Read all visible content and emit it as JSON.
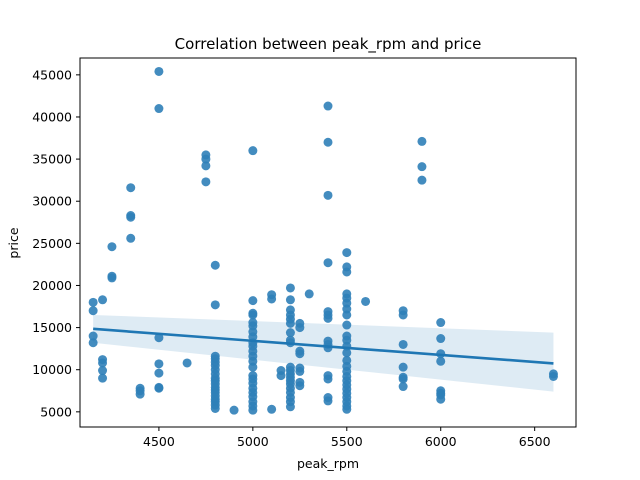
{
  "chart_data": {
    "type": "scatter",
    "title": "Correlation between peak_rpm and price",
    "xlabel": "peak_rpm",
    "ylabel": "price",
    "xlim": [
      4080,
      6720
    ],
    "ylim": [
      3200,
      47000
    ],
    "xticks": [
      4500,
      5000,
      5500,
      6000,
      6500
    ],
    "yticks": [
      5000,
      10000,
      15000,
      20000,
      25000,
      30000,
      35000,
      40000,
      45000
    ],
    "grid": false,
    "legend": "none",
    "color": "#1f77b4",
    "point_color": "#2f7fb8",
    "points": [
      [
        4150,
        18000
      ],
      [
        4150,
        17000
      ],
      [
        4150,
        14000
      ],
      [
        4150,
        13200
      ],
      [
        4200,
        18300
      ],
      [
        4200,
        11200
      ],
      [
        4200,
        10800
      ],
      [
        4200,
        9900
      ],
      [
        4200,
        9000
      ],
      [
        4250,
        24600
      ],
      [
        4250,
        21100
      ],
      [
        4250,
        20900
      ],
      [
        4350,
        31600
      ],
      [
        4350,
        28300
      ],
      [
        4350,
        28100
      ],
      [
        4350,
        25600
      ],
      [
        4400,
        7800
      ],
      [
        4400,
        7100
      ],
      [
        4400,
        7500
      ],
      [
        4500,
        45400
      ],
      [
        4500,
        41000
      ],
      [
        4500,
        13800
      ],
      [
        4500,
        10700
      ],
      [
        4500,
        9600
      ],
      [
        4500,
        7900
      ],
      [
        4500,
        7800
      ],
      [
        4650,
        10800
      ],
      [
        4750,
        35500
      ],
      [
        4750,
        35000
      ],
      [
        4750,
        34200
      ],
      [
        4750,
        32300
      ],
      [
        4800,
        22400
      ],
      [
        4800,
        17700
      ],
      [
        4800,
        11600
      ],
      [
        4800,
        11300
      ],
      [
        4800,
        10900
      ],
      [
        4800,
        10500
      ],
      [
        4800,
        10000
      ],
      [
        4800,
        9500
      ],
      [
        4800,
        9000
      ],
      [
        4800,
        8700
      ],
      [
        4800,
        8300
      ],
      [
        4800,
        7900
      ],
      [
        4800,
        7600
      ],
      [
        4800,
        7300
      ],
      [
        4800,
        6900
      ],
      [
        4800,
        6500
      ],
      [
        4800,
        6200
      ],
      [
        4800,
        5800
      ],
      [
        4800,
        5400
      ],
      [
        4900,
        5200
      ],
      [
        5000,
        36000
      ],
      [
        5000,
        18200
      ],
      [
        5000,
        16700
      ],
      [
        5000,
        16500
      ],
      [
        5000,
        15600
      ],
      [
        5000,
        15200
      ],
      [
        5000,
        14500
      ],
      [
        5000,
        13900
      ],
      [
        5000,
        13200
      ],
      [
        5000,
        12800
      ],
      [
        5000,
        12200
      ],
      [
        5000,
        11600
      ],
      [
        5000,
        11000
      ],
      [
        5000,
        10300
      ],
      [
        5000,
        9300
      ],
      [
        5000,
        8900
      ],
      [
        5000,
        8400
      ],
      [
        5000,
        7800
      ],
      [
        5000,
        7300
      ],
      [
        5000,
        6800
      ],
      [
        5000,
        6200
      ],
      [
        5000,
        5700
      ],
      [
        5000,
        5200
      ],
      [
        5100,
        18900
      ],
      [
        5100,
        18400
      ],
      [
        5100,
        5300
      ],
      [
        5150,
        9900
      ],
      [
        5150,
        9300
      ],
      [
        5200,
        19700
      ],
      [
        5200,
        18300
      ],
      [
        5200,
        17100
      ],
      [
        5200,
        16500
      ],
      [
        5200,
        16000
      ],
      [
        5200,
        15500
      ],
      [
        5200,
        14400
      ],
      [
        5200,
        13500
      ],
      [
        5200,
        13200
      ],
      [
        5200,
        10300
      ],
      [
        5200,
        9900
      ],
      [
        5200,
        9500
      ],
      [
        5200,
        9100
      ],
      [
        5200,
        8700
      ],
      [
        5200,
        8300
      ],
      [
        5200,
        7800
      ],
      [
        5200,
        7300
      ],
      [
        5200,
        6700
      ],
      [
        5200,
        6200
      ],
      [
        5200,
        5600
      ],
      [
        5250,
        15500
      ],
      [
        5250,
        15000
      ],
      [
        5250,
        12200
      ],
      [
        5250,
        11900
      ],
      [
        5250,
        10200
      ],
      [
        5250,
        9800
      ],
      [
        5250,
        8500
      ],
      [
        5250,
        8100
      ],
      [
        5300,
        19000
      ],
      [
        5400,
        41300
      ],
      [
        5400,
        37000
      ],
      [
        5400,
        30700
      ],
      [
        5400,
        22700
      ],
      [
        5400,
        16900
      ],
      [
        5400,
        16500
      ],
      [
        5400,
        16100
      ],
      [
        5400,
        13400
      ],
      [
        5400,
        13000
      ],
      [
        5400,
        12600
      ],
      [
        5400,
        9300
      ],
      [
        5400,
        8900
      ],
      [
        5400,
        6700
      ],
      [
        5400,
        6300
      ],
      [
        5500,
        23900
      ],
      [
        5500,
        22200
      ],
      [
        5500,
        21600
      ],
      [
        5500,
        19000
      ],
      [
        5500,
        18500
      ],
      [
        5500,
        17900
      ],
      [
        5500,
        17200
      ],
      [
        5500,
        16500
      ],
      [
        5500,
        15300
      ],
      [
        5500,
        14000
      ],
      [
        5500,
        13500
      ],
      [
        5500,
        12800
      ],
      [
        5500,
        12000
      ],
      [
        5500,
        11100
      ],
      [
        5500,
        10400
      ],
      [
        5500,
        9800
      ],
      [
        5500,
        9200
      ],
      [
        5500,
        8700
      ],
      [
        5500,
        8200
      ],
      [
        5500,
        7700
      ],
      [
        5500,
        7200
      ],
      [
        5500,
        6700
      ],
      [
        5500,
        6200
      ],
      [
        5500,
        5700
      ],
      [
        5500,
        5300
      ],
      [
        5600,
        18100
      ],
      [
        5800,
        17000
      ],
      [
        5800,
        16500
      ],
      [
        5800,
        13000
      ],
      [
        5800,
        10300
      ],
      [
        5800,
        9100
      ],
      [
        5800,
        8900
      ],
      [
        5800,
        8000
      ],
      [
        5900,
        37100
      ],
      [
        5900,
        34100
      ],
      [
        5900,
        32500
      ],
      [
        6000,
        15600
      ],
      [
        6000,
        13700
      ],
      [
        6000,
        11900
      ],
      [
        6000,
        11000
      ],
      [
        6000,
        7500
      ],
      [
        6000,
        7200
      ],
      [
        6000,
        7000
      ],
      [
        6000,
        6500
      ],
      [
        6600,
        9500
      ],
      [
        6600,
        9200
      ]
    ],
    "regression": {
      "x": [
        4150,
        6600
      ],
      "y": [
        14850,
        10750
      ],
      "ci_upper": [
        16500,
        14400
      ],
      "ci_lower": [
        13200,
        7400
      ]
    }
  }
}
